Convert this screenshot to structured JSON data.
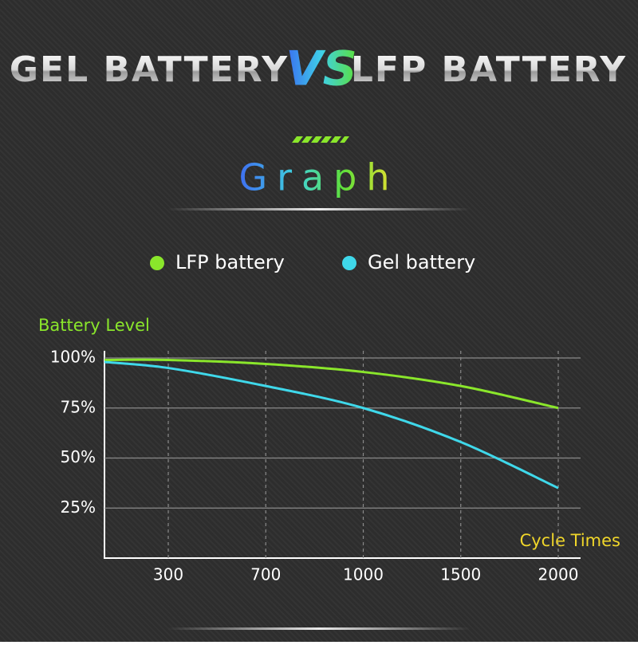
{
  "header": {
    "left": "GEL BATTERY",
    "vs": "VS",
    "right": "LFP BATTERY",
    "section": "Graph"
  },
  "chart_data": {
    "type": "line",
    "y_label": "Battery Level",
    "x_label": "Cycle Times",
    "categories": [
      null,
      "300",
      "700",
      "1000",
      "1500",
      "2000"
    ],
    "series": [
      {
        "name": "LFP battery",
        "color": "#8ae62b",
        "values": [
          99,
          99,
          97,
          93,
          86,
          75
        ]
      },
      {
        "name": "Gel battery",
        "color": "#3fd8ea",
        "values": [
          98,
          95,
          86,
          75,
          58,
          35
        ]
      }
    ],
    "ylim": [
      0,
      100
    ],
    "yticks": [
      {
        "value": 25,
        "label": "25%"
      },
      {
        "value": 50,
        "label": "50%"
      },
      {
        "value": 75,
        "label": "75%"
      },
      {
        "value": 100,
        "label": "100%"
      }
    ],
    "grid": true
  }
}
